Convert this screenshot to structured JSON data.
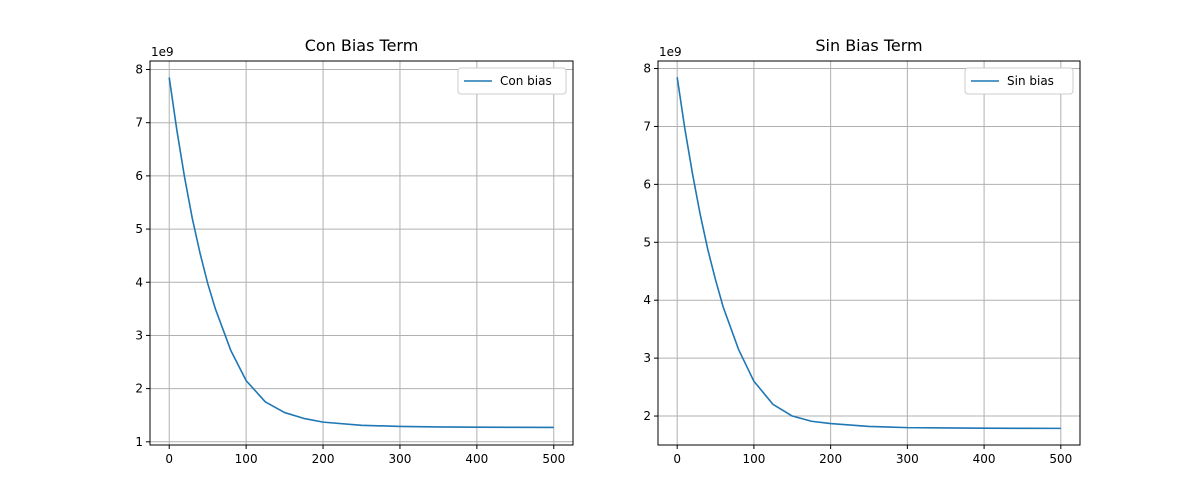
{
  "chart_data": [
    {
      "type": "line",
      "title": "Con Bias Term",
      "xlabel": "",
      "ylabel": "",
      "y_offset_label": "1e9",
      "xlim": [
        -25,
        525
      ],
      "ylim": [
        0.94,
        8.16
      ],
      "xticks": [
        0,
        100,
        200,
        300,
        400,
        500
      ],
      "yticks": [
        1,
        2,
        3,
        4,
        5,
        6,
        7,
        8
      ],
      "grid": true,
      "legend_position": "top-right",
      "series": [
        {
          "name": "Con bias",
          "color": "#1f77b4",
          "x": [
            0,
            10,
            20,
            30,
            40,
            50,
            60,
            80,
            100,
            125,
            150,
            175,
            200,
            250,
            300,
            350,
            400,
            450,
            500
          ],
          "y": [
            7.85,
            6.85,
            5.97,
            5.2,
            4.55,
            3.98,
            3.5,
            2.72,
            2.15,
            1.75,
            1.55,
            1.44,
            1.37,
            1.31,
            1.29,
            1.28,
            1.275,
            1.272,
            1.27
          ]
        }
      ]
    },
    {
      "type": "line",
      "title": "Sin Bias Term",
      "xlabel": "",
      "ylabel": "",
      "y_offset_label": "1e9",
      "xlim": [
        -25,
        525
      ],
      "ylim": [
        1.5,
        8.13
      ],
      "xticks": [
        0,
        100,
        200,
        300,
        400,
        500
      ],
      "yticks": [
        2,
        3,
        4,
        5,
        6,
        7,
        8
      ],
      "grid": true,
      "legend_position": "top-right",
      "series": [
        {
          "name": "Sin bias",
          "color": "#1f77b4",
          "x": [
            0,
            10,
            20,
            30,
            40,
            50,
            60,
            80,
            100,
            125,
            150,
            175,
            200,
            250,
            300,
            350,
            400,
            450,
            500
          ],
          "y": [
            7.85,
            6.96,
            6.18,
            5.48,
            4.87,
            4.35,
            3.88,
            3.15,
            2.6,
            2.2,
            2.0,
            1.91,
            1.87,
            1.82,
            1.8,
            1.795,
            1.79,
            1.788,
            1.787
          ]
        }
      ]
    }
  ]
}
